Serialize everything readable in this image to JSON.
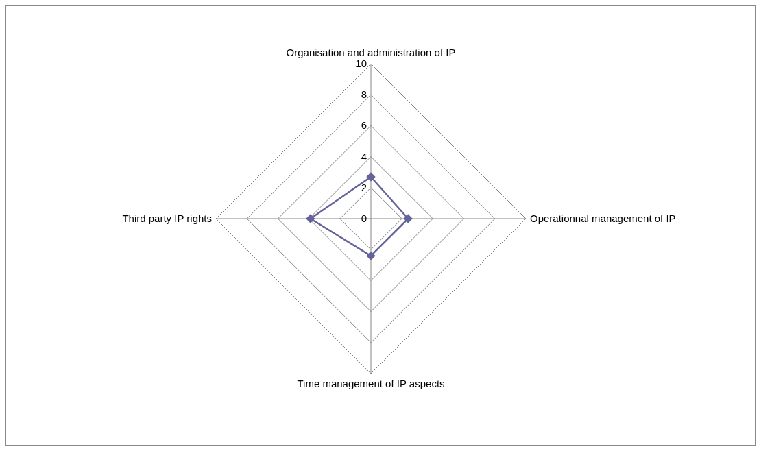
{
  "chart_data": {
    "type": "radar",
    "categories": [
      "Organisation and administration of IP",
      "Operationnal management of IP",
      "Time management of IP aspects",
      "Third party IP rights"
    ],
    "series": [
      {
        "color": "#64649b",
        "values": [
          2.7,
          2.4,
          2.4,
          3.9
        ]
      }
    ],
    "ylim": [
      0,
      10
    ],
    "yticks": [
      0,
      2,
      4,
      6,
      8,
      10
    ],
    "grid": true,
    "marker": "diamond"
  }
}
